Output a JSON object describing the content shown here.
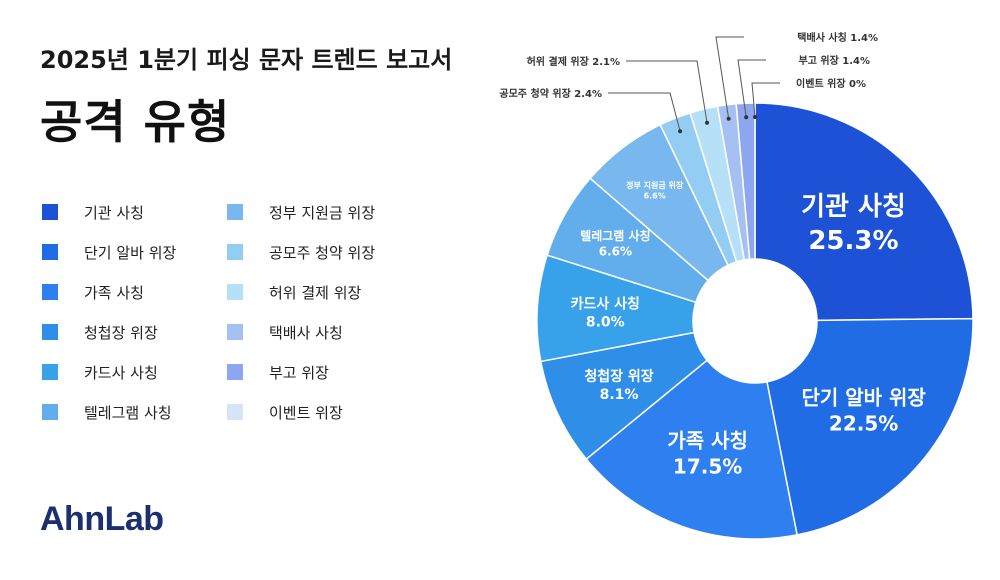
{
  "header": {
    "subtitle": "2025년 1분기 피싱 문자 트렌드 보고서",
    "title": "공격 유형"
  },
  "brand": {
    "logo": "AhnLab"
  },
  "chart_data": {
    "type": "pie",
    "donut": true,
    "title": "공격 유형",
    "legend_position": "left",
    "categories": [
      "기관 사칭",
      "단기 알바 위장",
      "가족 사칭",
      "청첩장 위장",
      "카드사 사칭",
      "텔레그램 사칭",
      "정부 지원금 위장",
      "공모주 청약 위장",
      "허위 결제 위장",
      "택배사 사칭",
      "부고 위장",
      "이벤트 위장"
    ],
    "values": [
      25.3,
      22.5,
      17.5,
      8.1,
      8.0,
      6.6,
      6.6,
      2.4,
      2.1,
      1.4,
      1.4,
      0
    ],
    "value_labels": [
      "25.3%",
      "22.5%",
      "17.5%",
      "8.1%",
      "8.0%",
      "6.6%",
      "6.6%",
      "2.4%",
      "2.1%",
      "1.4%",
      "1.4%",
      "0%"
    ],
    "colors": [
      "#1d52d6",
      "#1f6ce4",
      "#2e7ff0",
      "#2f8fe8",
      "#37a1ea",
      "#62aeec",
      "#78b8ef",
      "#94cdf3",
      "#b6e0f7",
      "#a5c0f2",
      "#8ea6ef",
      "#d7e4f7"
    ],
    "label_colors": [
      "#ffffff",
      "#ffffff",
      "#ffffff",
      "#ffffff",
      "#ffffff",
      "#ffffff",
      "#ffffff",
      "#333333",
      "#333333",
      "#333333",
      "#333333",
      "#333333"
    ]
  }
}
